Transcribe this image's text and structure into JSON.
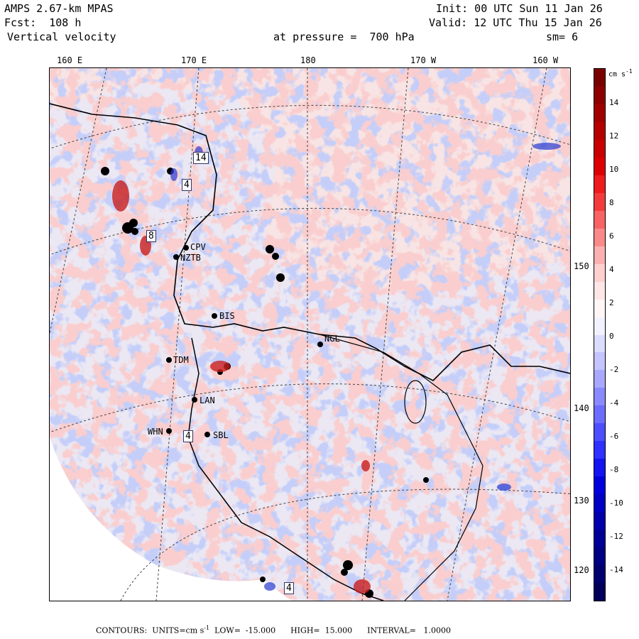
{
  "header": {
    "model": "AMPS 2.67-km MPAS",
    "forecast": "Fcst:  108 h",
    "field": "Vertical velocity",
    "init": "Init: 00 UTC Sun 11 Jan 26",
    "valid": "Valid: 12 UTC Thu 15 Jan 26",
    "pressure": "at pressure =  700 hPa",
    "smoothing": "sm= 6"
  },
  "longitude_labels": [
    "160 E",
    "170 E",
    "180",
    "170 W",
    "160 W"
  ],
  "latitude_labels": [
    "150 W",
    "140 W",
    "130 W",
    "120 W"
  ],
  "colorbar": {
    "unit": "cm s",
    "unit_exp": "-1",
    "ticks": [
      "14",
      "12",
      "10",
      "8",
      "6",
      "4",
      "2",
      "0",
      "-2",
      "-4",
      "-6",
      "-8",
      "-10",
      "-12",
      "-14"
    ],
    "colors": [
      "#7a0000",
      "#8e0000",
      "#a00000",
      "#b50000",
      "#c80000",
      "#dc0000",
      "#ee1c1c",
      "#f43b3b",
      "#f86464",
      "#fa8a8a",
      "#fcb0b0",
      "#fdcfcf",
      "#fee6e6",
      "#fff6f6",
      "#f2f2ff",
      "#dcdcff",
      "#c4c4ff",
      "#a8a8ff",
      "#8a8aff",
      "#6c6cff",
      "#4e4eff",
      "#3030ff",
      "#1414f0",
      "#0000dc",
      "#0000c4",
      "#0000ac",
      "#000096",
      "#000082",
      "#00006e",
      "#00005a"
    ]
  },
  "stations": [
    "CPV",
    "NZTB",
    "BIS",
    "NGL",
    "TDM",
    "LAN",
    "WHN",
    "SBL"
  ],
  "boxed_labels": [
    "14",
    "4",
    "8",
    "4",
    "4"
  ],
  "footer": {
    "contours": "CONTOURS:  UNITS=cm s",
    "exp": "-1",
    "low": "LOW=  -15.000",
    "high": "HIGH=  15.000",
    "interval": "INTERVAL=   1.0000"
  },
  "colors": {
    "positive": "#f4a3a3",
    "negative": "#9aa8f0",
    "background": "#fbeaea"
  }
}
